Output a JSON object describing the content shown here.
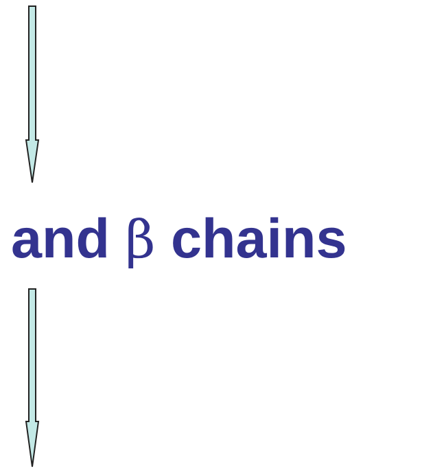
{
  "diagram": {
    "colors": {
      "text": "#33338f",
      "arrow_fill": "#c3e9e6",
      "arrow_stroke": "#222222"
    },
    "label": {
      "before_symbol": "and ",
      "symbol": "β",
      "after_symbol": " chains"
    },
    "arrows": [
      {
        "direction": "down"
      },
      {
        "direction": "down"
      }
    ]
  }
}
